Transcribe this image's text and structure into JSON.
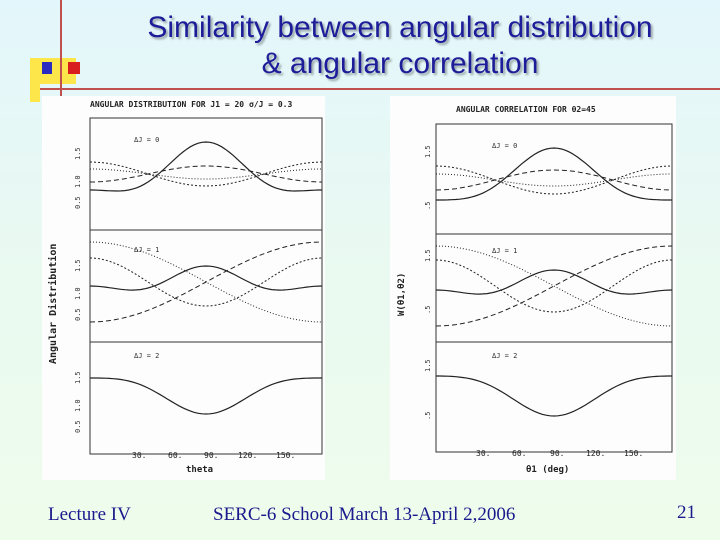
{
  "slide": {
    "title_line1": "Similarity between angular distribution",
    "title_line2": "& angular correlation",
    "footer_left": "Lecture IV",
    "footer_center": "SERC-6 School March 13-April 2,2006",
    "page_number": "21",
    "colors": {
      "title": "#1d1d9a",
      "deco_yellow": "#fde64a",
      "deco_blue": "#2a2ac0",
      "deco_red": "#d81e1e"
    }
  },
  "left_figure": {
    "title": "ANGULAR DISTRIBUTION FOR J1 = 20  σ/J = 0.3",
    "ylabel": "Angular Distribution",
    "xlabel": "theta",
    "xticks": [
      "30.",
      "60.",
      "90.",
      "120.",
      "150."
    ],
    "yticks": [
      "0.5",
      "1.0",
      "1.5"
    ],
    "panel_labels": [
      "ΔJ = 0",
      "ΔJ = 1",
      "ΔJ = 2"
    ]
  },
  "right_figure": {
    "title": "ANGULAR CORRELATION FOR θ2=45",
    "ylabel": "W(θ1,θ2)",
    "xlabel": "θ1 (deg)",
    "xticks": [
      "30.",
      "60.",
      "90.",
      "120.",
      "150."
    ],
    "yticks": [
      ".5",
      "1.5"
    ],
    "panel_labels": [
      "ΔJ = 0",
      "ΔJ = 1",
      "ΔJ = 2"
    ]
  }
}
